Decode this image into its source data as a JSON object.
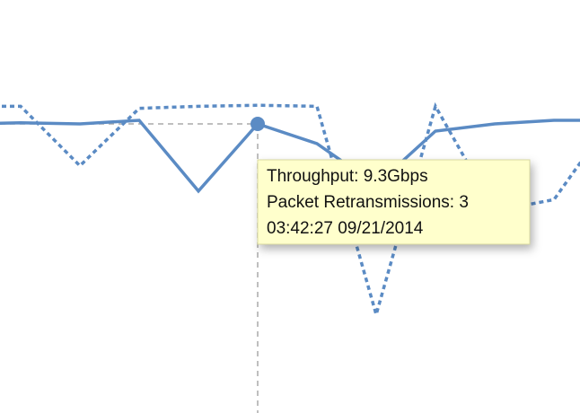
{
  "chart_data": {
    "type": "line",
    "series": [
      {
        "name": "Throughput",
        "color": "#5b8bc4",
        "style": "solid",
        "values": [
          9.3,
          9.33,
          9.3,
          9.4,
          7.43,
          9.3,
          8.75,
          7.6,
          9.1,
          9.3,
          9.4,
          9.4
        ]
      },
      {
        "name": "Packet Retransmissions",
        "color": "#5b8bc4",
        "style": "dotted",
        "axis": "y2",
        "values": [
          2.99,
          2.99,
          2.41,
          2.97,
          2.99,
          3,
          2.99,
          0.96,
          2.99,
          1.97,
          2.08,
          2.89
        ]
      }
    ],
    "ylim": [
      0,
      10
    ],
    "y2lim": [
      0,
      4
    ],
    "highlight_index": 5,
    "tooltip": [
      "Throughput: 9.3Gbps",
      "Packet Retransmissions: 3",
      "03:42:27 09/21/2014"
    ]
  }
}
